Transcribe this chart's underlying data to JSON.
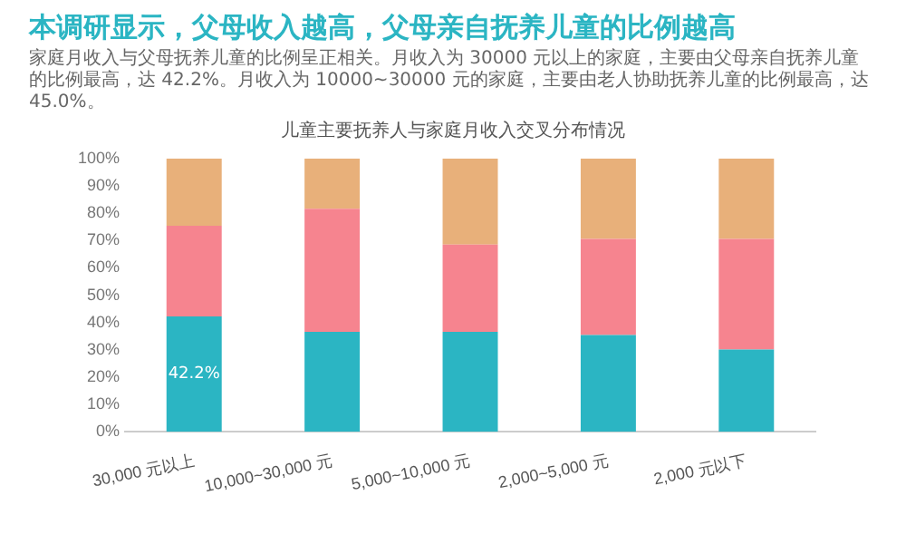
{
  "chart_data": {
    "type": "bar",
    "title": "本调研显示，父母收入越高，父母亲自抚养儿童的比例越高",
    "subtitle": "家庭月收入与父母抚养儿童的比例呈正相关。月收入为 30000 元以上的家庭，主要由父母亲自抚养儿童的比例最高，达 42.2%。月收入为 10000~30000 元的家庭，主要由老人协助抚养儿童的比例最高，达 45.0%。",
    "annotations": [
      "儿童主要抚养人与家庭月收入交叉分布情况"
    ],
    "categories": [
      "30,000 元以上",
      "10,000~30,000 元",
      "5,000~10,000 元",
      "2,000~5,000 元",
      "2,000 元以下"
    ],
    "stacked": true,
    "series": [
      {
        "color": "#2bb5c3",
        "values": [
          42.2,
          36.6,
          36.6,
          35.4,
          30.1
        ],
        "value_labels": [
          "42.2%",
          null,
          null,
          null,
          null
        ]
      },
      {
        "color": "#f6848f",
        "values": [
          33.2,
          45.0,
          31.9,
          35.2,
          40.5
        ]
      },
      {
        "color": "#e8b07a",
        "values": [
          24.6,
          18.4,
          31.5,
          29.4,
          29.4
        ]
      }
    ],
    "ylim": [
      0,
      100
    ],
    "yticks": [
      {
        "value": 0,
        "label": "0%"
      },
      {
        "value": 10,
        "label": "10%"
      },
      {
        "value": 20,
        "label": "20%"
      },
      {
        "value": 30,
        "label": "30%"
      },
      {
        "value": 40,
        "label": "40%"
      },
      {
        "value": 50,
        "label": "50%"
      },
      {
        "value": 60,
        "label": "60%"
      },
      {
        "value": 70,
        "label": "70%"
      },
      {
        "value": 80,
        "label": "80%"
      },
      {
        "value": 90,
        "label": "90%"
      },
      {
        "value": 100,
        "label": "100%"
      }
    ],
    "grid": false,
    "legend": false
  }
}
